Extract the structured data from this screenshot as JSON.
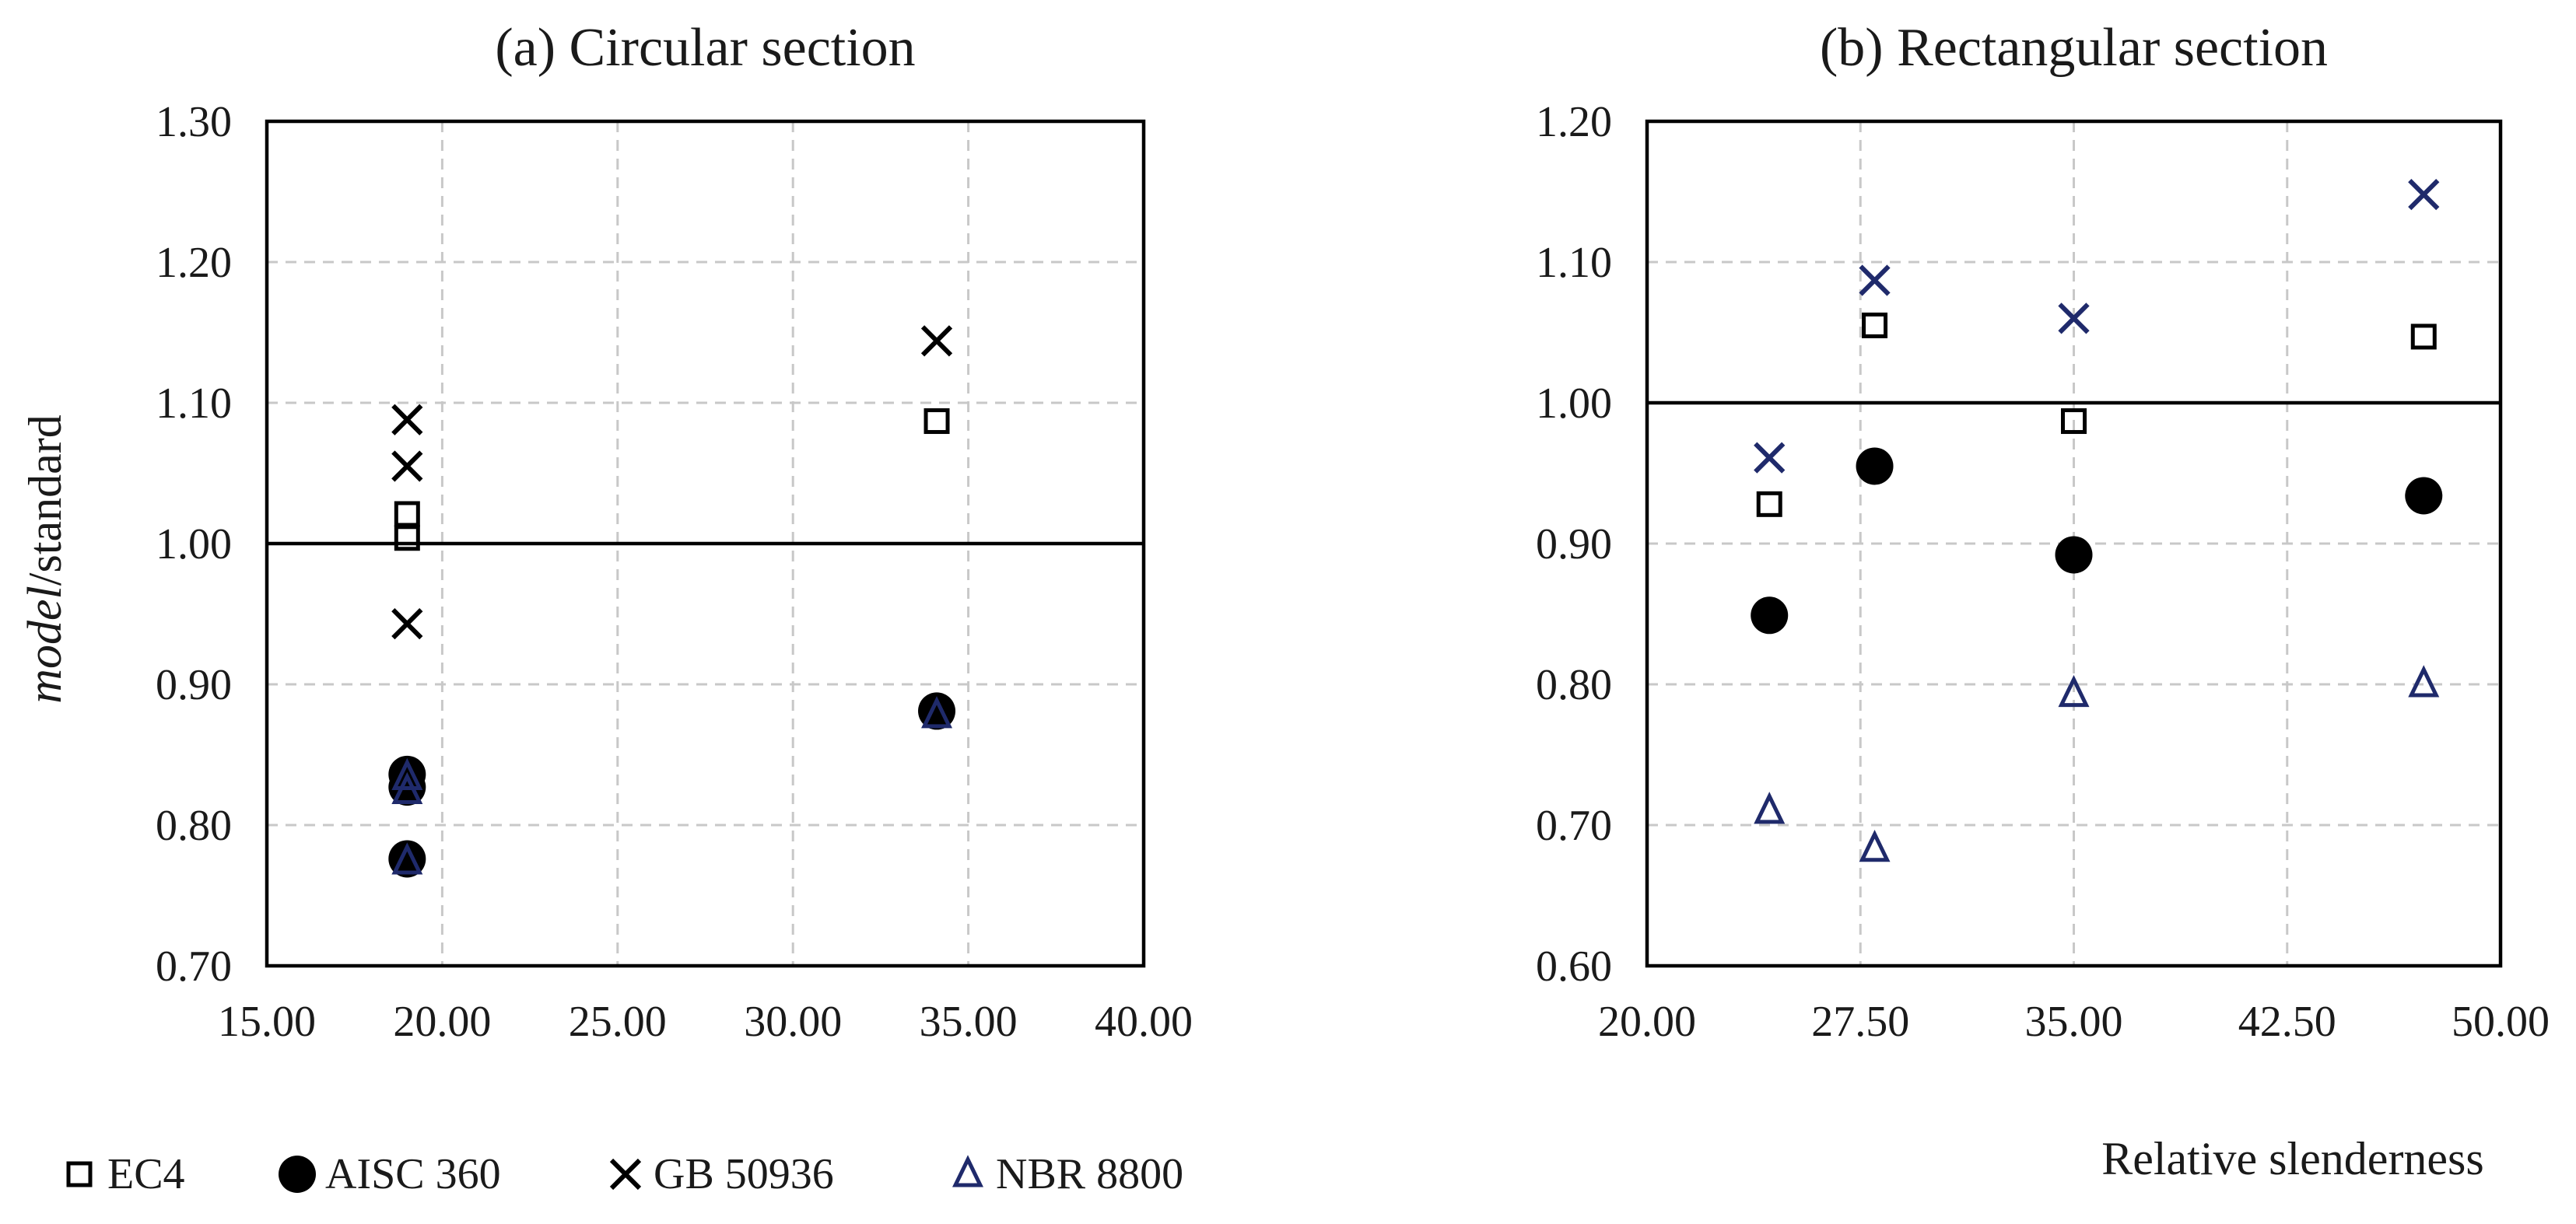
{
  "chart_data": [
    {
      "type": "scatter",
      "title": "(a) Circular section",
      "ylabel_italic": "model",
      "ylabel_rest": "/standard",
      "xlim": [
        15,
        40
      ],
      "ylim": [
        0.7,
        1.3
      ],
      "x_ticks": [
        "15.00",
        "20.00",
        "25.00",
        "30.00",
        "35.00",
        "40.00"
      ],
      "y_ticks": [
        "0.70",
        "0.80",
        "0.90",
        "1.00",
        "1.10",
        "1.20",
        "1.30"
      ],
      "grid": true,
      "reference_line": 1.0,
      "series": [
        {
          "name": "EC4",
          "marker": "square",
          "color": "#000000",
          "x": [
            19.0,
            19.0,
            34.1
          ],
          "y": [
            1.004,
            1.021,
            1.087
          ]
        },
        {
          "name": "AISC 360",
          "marker": "circle",
          "color": "#000000",
          "x": [
            19.0,
            19.0,
            19.0,
            34.1
          ],
          "y": [
            0.776,
            0.827,
            0.836,
            0.881
          ]
        },
        {
          "name": "GB 50936",
          "marker": "x",
          "color": "#000000",
          "x": [
            19.0,
            19.0,
            19.0,
            34.1
          ],
          "y": [
            0.943,
            1.055,
            1.088,
            1.144
          ]
        },
        {
          "name": "NBR 8800",
          "marker": "triangle",
          "color": "#1f2a6b",
          "x": [
            19.0,
            19.0,
            19.0,
            34.1
          ],
          "y": [
            0.774,
            0.824,
            0.834,
            0.878
          ]
        }
      ]
    },
    {
      "type": "scatter",
      "title": "(b) Rectangular section",
      "xlabel": "Relative slenderness",
      "xlim": [
        20,
        50
      ],
      "ylim": [
        0.6,
        1.2
      ],
      "x_ticks": [
        "20.00",
        "27.50",
        "35.00",
        "42.50",
        "50.00"
      ],
      "y_ticks": [
        "0.60",
        "0.70",
        "0.80",
        "0.90",
        "1.00",
        "1.10",
        "1.20"
      ],
      "grid": true,
      "reference_line": 1.0,
      "series": [
        {
          "name": "EC4",
          "marker": "square",
          "color": "#000000",
          "x": [
            24.3,
            28.0,
            35.0,
            47.3
          ],
          "y": [
            0.928,
            1.055,
            0.987,
            1.047
          ]
        },
        {
          "name": "AISC 360",
          "marker": "circle",
          "color": "#000000",
          "x": [
            24.3,
            28.0,
            35.0,
            47.3
          ],
          "y": [
            0.849,
            0.955,
            0.892,
            0.934
          ]
        },
        {
          "name": "GB 50936",
          "marker": "x",
          "color": "#1f2a6b",
          "x": [
            24.3,
            28.0,
            35.0,
            47.3
          ],
          "y": [
            0.961,
            1.087,
            1.06,
            1.148
          ]
        },
        {
          "name": "NBR 8800",
          "marker": "triangle",
          "color": "#1f2a6b",
          "x": [
            24.3,
            28.0,
            35.0,
            47.3
          ],
          "y": [
            0.71,
            0.683,
            0.793,
            0.8
          ]
        }
      ]
    }
  ],
  "legend": {
    "placement": "bottom-left",
    "items": [
      {
        "label": "EC4",
        "marker": "square",
        "color": "#000000"
      },
      {
        "label": "AISC 360",
        "marker": "circle",
        "color": "#000000"
      },
      {
        "label": "GB 50936",
        "marker": "x",
        "color": "#000000"
      },
      {
        "label": "NBR 8800",
        "marker": "triangle",
        "color": "#1f2a6b"
      }
    ]
  }
}
